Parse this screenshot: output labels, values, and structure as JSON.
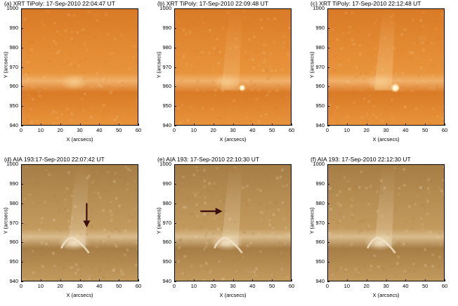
{
  "axes": {
    "xlabel": "X (arcsecs)",
    "ylabel": "Y (arcsecs)",
    "x_ticks": [
      "0",
      "10",
      "20",
      "30",
      "40",
      "50",
      "60"
    ]
  },
  "panels": [
    {
      "title": "(a) XRT TiPoly: 17-Sep-2010 22:04:47 UT",
      "y_ticks": [
        "940",
        "950",
        "960",
        "970",
        "980",
        "990",
        "1000"
      ],
      "style": "xrt",
      "bright_spot": false,
      "arrow": null
    },
    {
      "title": "(b) XRT TiPoly: 17-Sep-2010 22:09:48 UT",
      "y_ticks": [
        "940",
        "950",
        "960",
        "970",
        "980",
        "990",
        "1000"
      ],
      "style": "xrt",
      "bright_spot": true,
      "arrow": null
    },
    {
      "title": "(c) XRT TiPoly: 17-Sep-2010 22:12:48 UT",
      "y_ticks": [
        "940",
        "950",
        "960",
        "970",
        "980",
        "990",
        "1000"
      ],
      "style": "xrt",
      "bright_spot": true,
      "arrow": null
    },
    {
      "title": "(d) AIA 193:17-Sep-2010 22:07:42 UT",
      "y_ticks": [
        "940",
        "950",
        "960",
        "970",
        "980",
        "990",
        "1000"
      ],
      "style": "aia",
      "bright_spot": false,
      "arrow": "down"
    },
    {
      "title": "(e) AIA 193: 17-Sep-2010 22:10:30 UT",
      "y_ticks": [
        "940",
        "950",
        "960",
        "970",
        "980",
        "990",
        "1000"
      ],
      "style": "aia",
      "bright_spot": false,
      "arrow": "right"
    },
    {
      "title": "(f) AIA 193: 17-Sep-2010 22:12:30 UT",
      "y_ticks": [
        "940",
        "950",
        "960",
        "970",
        "980",
        "990",
        "1000"
      ],
      "style": "aia",
      "bright_spot": false,
      "arrow": null
    }
  ],
  "colors": {
    "xrt_base": "#e8943c",
    "xrt_dark": "#d97a26",
    "xrt_bright": "#f6c98a",
    "aia_base": "#c39a5e",
    "aia_dark": "#a67d45",
    "aia_bright": "#f2e2c4",
    "arrow": "#3a0e0e"
  }
}
